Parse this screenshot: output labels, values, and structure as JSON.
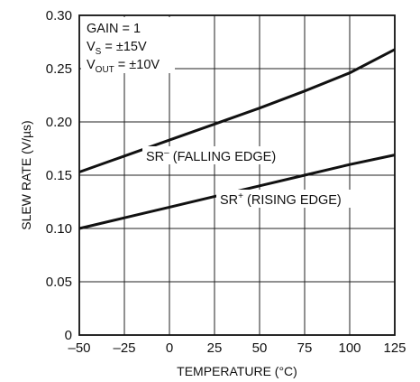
{
  "chart_data": {
    "type": "line",
    "title": "",
    "xlabel": "TEMPERATURE (°C)",
    "ylabel": "SLEW RATE (V/µs)",
    "xlim": [
      -50,
      125
    ],
    "ylim": [
      0,
      0.3
    ],
    "xticks": [
      -50,
      -25,
      0,
      25,
      50,
      75,
      100,
      125
    ],
    "yticks": [
      0,
      0.05,
      0.1,
      0.15,
      0.2,
      0.25,
      0.3
    ],
    "xtick_labels": [
      "–50",
      "–25",
      "0",
      "25",
      "50",
      "75",
      "100",
      "125"
    ],
    "ytick_labels": [
      "0",
      "0.05",
      "0.10",
      "0.15",
      "0.20",
      "0.25",
      "0.30"
    ],
    "grid": true,
    "conditions": {
      "gain": "GAIN = 1",
      "vs_main": "V",
      "vs_sub": "S",
      "vs_rest": " = ±15V",
      "vout_main": "V",
      "vout_sub": "OUT",
      "vout_rest": " = ±10V"
    },
    "series": [
      {
        "name": "SR",
        "label_main": "SR",
        "label_sup": "–",
        "label_rest": " (FALLING EDGE)",
        "x": [
          -50,
          -25,
          0,
          25,
          50,
          75,
          100,
          125
        ],
        "y": [
          0.153,
          0.168,
          0.183,
          0.198,
          0.213,
          0.229,
          0.246,
          0.268
        ]
      },
      {
        "name": "SR",
        "label_main": "SR",
        "label_sup": "+",
        "label_rest": " (RISING EDGE)",
        "x": [
          -50,
          -25,
          0,
          25,
          50,
          75,
          100,
          125
        ],
        "y": [
          0.1,
          0.11,
          0.12,
          0.13,
          0.14,
          0.15,
          0.16,
          0.169
        ]
      }
    ]
  }
}
